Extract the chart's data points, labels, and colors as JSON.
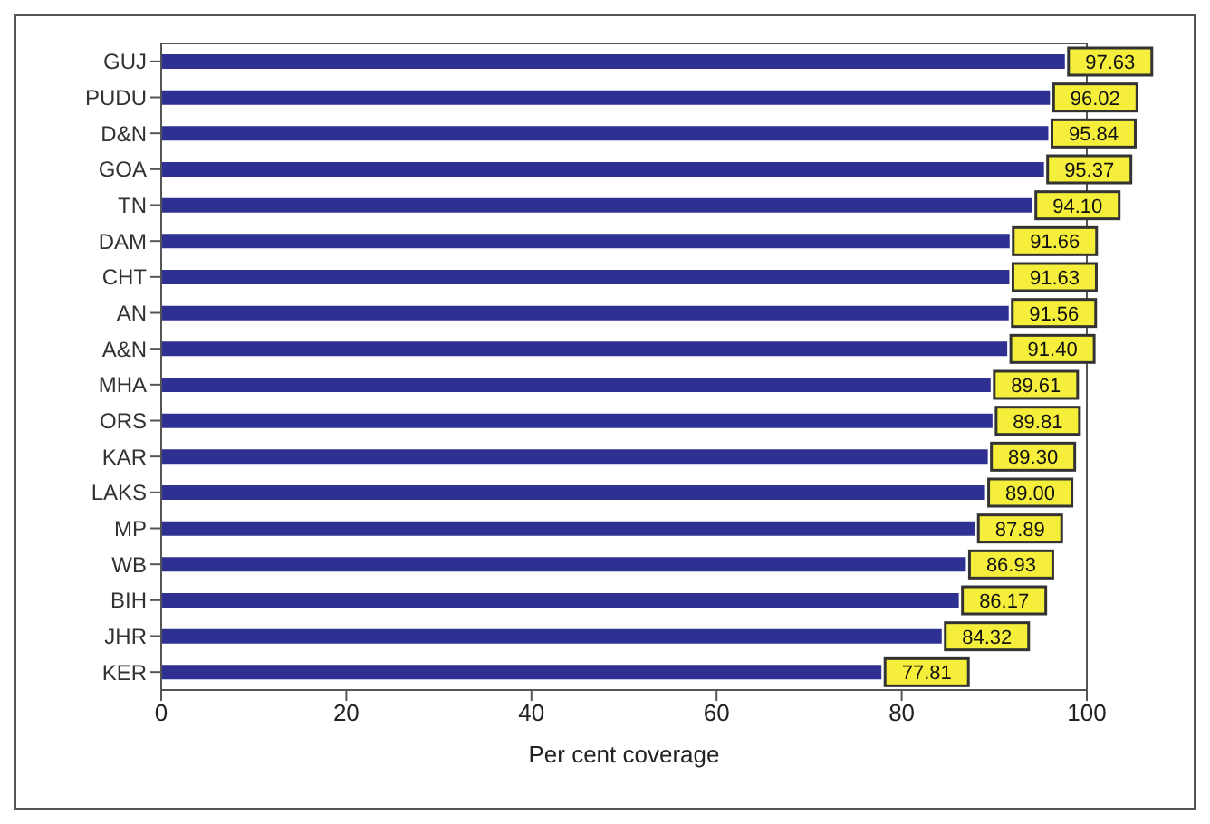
{
  "chart_data": {
    "type": "bar",
    "orientation": "horizontal",
    "xlabel": "Per cent coverage",
    "categories": [
      "GUJ",
      "PUDU",
      "D&N",
      "GOA",
      "TN",
      "DAM",
      "CHT",
      "AN",
      "A&N",
      "MHA",
      "ORS",
      "KAR",
      "LAKS",
      "MP",
      "WB",
      "BIH",
      "JHR",
      "KER"
    ],
    "values": [
      97.63,
      96.02,
      95.84,
      95.37,
      94.1,
      91.66,
      91.63,
      91.56,
      91.4,
      89.61,
      89.81,
      89.3,
      89.0,
      87.89,
      86.93,
      86.17,
      84.32,
      77.81
    ],
    "value_labels": [
      "97.63",
      "96.02",
      "95.84",
      "95.37",
      "94.10",
      "91.66",
      "91.63",
      "91.56",
      "91.40",
      "89.61",
      "89.81",
      "89.30",
      "89.00",
      "87.89",
      "86.93",
      "86.17",
      "84.32",
      "77.81"
    ],
    "color": "#2e3192",
    "xlim": [
      0,
      100
    ],
    "xticks": [
      0,
      20,
      40,
      60,
      80,
      100
    ],
    "grid": false
  }
}
